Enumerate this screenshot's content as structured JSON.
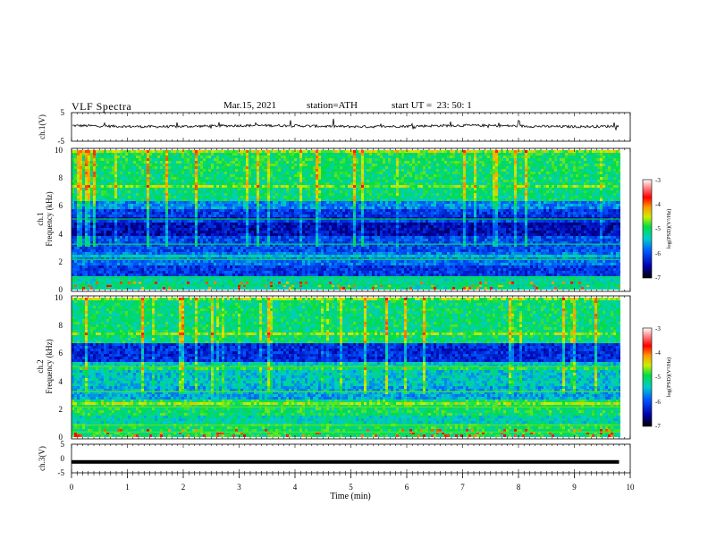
{
  "header": {
    "title": "VLF Spectra",
    "date": "Mar.15, 2021",
    "station": "station=ATH",
    "start": "start UT =  23: 50: 1"
  },
  "chart_data": [
    {
      "type": "line",
      "panel": "ch1-waveform",
      "ylabel": "ch.1(V)",
      "ylim": [
        -5,
        5
      ],
      "yticks": [
        "5",
        "-5"
      ],
      "xlim": [
        0,
        10
      ],
      "color": "#000000",
      "description_level": 0.3
    },
    {
      "type": "heatmap",
      "panel": "ch1-spectrogram",
      "ylabel_top": "ch.1",
      "ylabel": "Frequency (kHz)",
      "ylim": [
        0,
        10
      ],
      "yticks": [
        "0",
        "2",
        "4",
        "6",
        "8",
        "10"
      ],
      "xlim": [
        0,
        9.8
      ],
      "colorbar": {
        "label": "log(PSD)(V²/Hz)",
        "range": [
          -7,
          -3
        ],
        "ticks": [
          "-3",
          "-4",
          "-5",
          "-6",
          "-7"
        ]
      }
    },
    {
      "type": "heatmap",
      "panel": "ch2-spectrogram",
      "ylabel_top": "ch.2",
      "ylabel": "Frequency (kHz)",
      "ylim": [
        0,
        10
      ],
      "yticks": [
        "0",
        "2",
        "4",
        "6",
        "8",
        "10"
      ],
      "xlim": [
        0,
        9.8
      ],
      "colorbar": {
        "label": "log(PSD)(V²/Hz)",
        "range": [
          -7,
          -3
        ],
        "ticks": [
          "-3",
          "-4",
          "-5",
          "-6",
          "-7"
        ]
      }
    },
    {
      "type": "line",
      "panel": "ch3-waveform",
      "ylabel": "ch.3(V)",
      "ylim": [
        -5,
        5
      ],
      "yticks": [
        "5",
        "0",
        "-5"
      ],
      "xlim": [
        0,
        10
      ],
      "value": -1.2,
      "color": "#000000"
    }
  ],
  "xaxis": {
    "label": "Time (min)",
    "ticks": [
      "0",
      "1",
      "2",
      "3",
      "4",
      "5",
      "6",
      "7",
      "8",
      "9",
      "10"
    ],
    "range": [
      0,
      10
    ]
  }
}
